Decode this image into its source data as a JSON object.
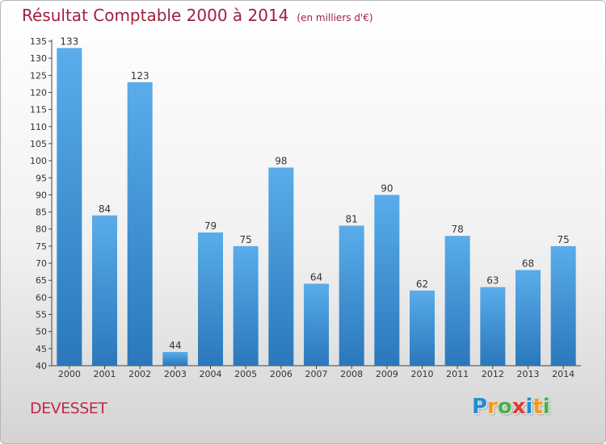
{
  "chart_data": {
    "type": "bar",
    "title": "Résultat Comptable 2000 à 2014",
    "subtitle": "(en milliers d'€)",
    "categories": [
      "2000",
      "2001",
      "2002",
      "2003",
      "2004",
      "2005",
      "2006",
      "2007",
      "2008",
      "2009",
      "2010",
      "2011",
      "2012",
      "2013",
      "2014"
    ],
    "values": [
      133,
      84,
      123,
      44,
      79,
      75,
      98,
      64,
      81,
      90,
      62,
      78,
      63,
      68,
      75
    ],
    "ylim": [
      40,
      135
    ],
    "ytick_step": 5,
    "grid": false,
    "legend": "none",
    "bar_color_top": "#5aacea",
    "bar_color_bottom": "#2a78bb"
  },
  "location_name": "DEVESSET",
  "logo": {
    "letters": [
      "P",
      "r",
      "o",
      "x",
      "i",
      "t",
      "i"
    ],
    "colors": [
      "#1e8fd6",
      "#f39a1a",
      "#49b24b",
      "#e23a2f",
      "#1e8fd6",
      "#f39a1a",
      "#49b24b"
    ]
  }
}
